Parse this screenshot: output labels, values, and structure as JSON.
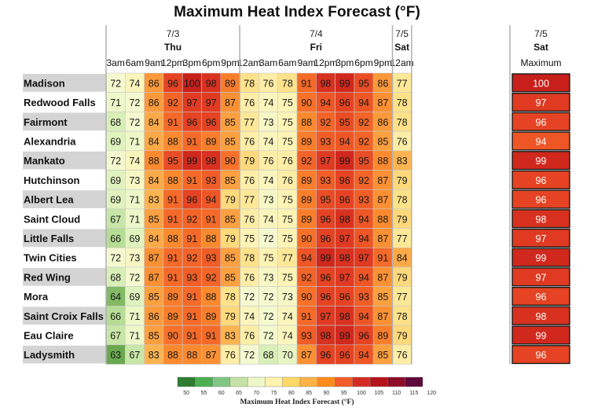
{
  "chart_data": {
    "type": "heatmap",
    "title": "Maximum Heat Index Forecast (°F)",
    "day_groups": [
      {
        "date": "7/3",
        "day": "Thu"
      },
      {
        "date": "7/4",
        "day": "Fri"
      },
      {
        "date": "7/5",
        "day": "Sat"
      }
    ],
    "columns": [
      "3am",
      "6am",
      "9am",
      "12pm",
      "3pm",
      "6pm",
      "9pm",
      "12am",
      "3am",
      "6am",
      "9am",
      "12pm",
      "3pm",
      "6pm",
      "9pm",
      "12am"
    ],
    "column_day_index": [
      0,
      0,
      0,
      0,
      0,
      0,
      0,
      1,
      1,
      1,
      1,
      1,
      1,
      1,
      1,
      2
    ],
    "maximum_label": "Maximum",
    "rows": [
      {
        "name": "Madison",
        "values": [
          72,
          74,
          86,
          96,
          100,
          98,
          89,
          78,
          76,
          78,
          91,
          98,
          99,
          95,
          86,
          77
        ],
        "max": 100
      },
      {
        "name": "Redwood Falls",
        "values": [
          71,
          72,
          86,
          92,
          97,
          97,
          87,
          76,
          74,
          75,
          90,
          94,
          96,
          94,
          87,
          78
        ],
        "max": 97
      },
      {
        "name": "Fairmont",
        "values": [
          68,
          72,
          84,
          91,
          96,
          96,
          85,
          77,
          73,
          75,
          88,
          92,
          95,
          92,
          86,
          78
        ],
        "max": 96
      },
      {
        "name": "Alexandria",
        "values": [
          69,
          71,
          84,
          88,
          91,
          89,
          85,
          76,
          74,
          75,
          89,
          93,
          94,
          92,
          85,
          76
        ],
        "max": 94
      },
      {
        "name": "Mankato",
        "values": [
          72,
          74,
          88,
          95,
          99,
          98,
          90,
          79,
          76,
          76,
          92,
          97,
          99,
          95,
          88,
          83
        ],
        "max": 99
      },
      {
        "name": "Hutchinson",
        "values": [
          69,
          73,
          84,
          88,
          91,
          93,
          85,
          76,
          74,
          76,
          89,
          93,
          96,
          92,
          87,
          79
        ],
        "max": 96
      },
      {
        "name": "Albert Lea",
        "values": [
          69,
          71,
          83,
          91,
          96,
          94,
          79,
          77,
          73,
          75,
          89,
          95,
          96,
          93,
          87,
          78
        ],
        "max": 96
      },
      {
        "name": "Saint Cloud",
        "values": [
          67,
          71,
          85,
          91,
          92,
          91,
          85,
          76,
          74,
          75,
          89,
          96,
          98,
          94,
          88,
          79
        ],
        "max": 98
      },
      {
        "name": "Little Falls",
        "values": [
          66,
          69,
          84,
          88,
          91,
          88,
          79,
          75,
          72,
          75,
          90,
          96,
          97,
          94,
          87,
          77
        ],
        "max": 97
      },
      {
        "name": "Twin Cities",
        "values": [
          72,
          73,
          87,
          91,
          92,
          93,
          85,
          78,
          75,
          77,
          94,
          99,
          98,
          97,
          91,
          84
        ],
        "max": 99
      },
      {
        "name": "Red Wing",
        "values": [
          68,
          72,
          87,
          91,
          93,
          92,
          85,
          76,
          73,
          75,
          92,
          96,
          97,
          94,
          87,
          79
        ],
        "max": 97
      },
      {
        "name": "Mora",
        "values": [
          64,
          69,
          85,
          89,
          91,
          88,
          78,
          72,
          72,
          73,
          90,
          96,
          96,
          93,
          85,
          77
        ],
        "max": 96
      },
      {
        "name": "Saint Croix Falls",
        "values": [
          66,
          71,
          86,
          89,
          91,
          89,
          79,
          74,
          72,
          74,
          91,
          97,
          98,
          94,
          87,
          78
        ],
        "max": 98
      },
      {
        "name": "Eau Claire",
        "values": [
          67,
          71,
          85,
          90,
          91,
          91,
          83,
          76,
          72,
          74,
          93,
          98,
          99,
          96,
          89,
          79
        ],
        "max": 99
      },
      {
        "name": "Ladysmith",
        "values": [
          63,
          67,
          83,
          88,
          88,
          87,
          76,
          72,
          68,
          70,
          87,
          96,
          96,
          94,
          85,
          76
        ],
        "max": 96
      }
    ],
    "colorbar": {
      "ticks": [
        50,
        55,
        60,
        65,
        70,
        75,
        80,
        85,
        90,
        95,
        100,
        105,
        110,
        115,
        120
      ],
      "colors": [
        "#2e7d32",
        "#4caf50",
        "#81c784",
        "#c5e1a5",
        "#eef7c8",
        "#fff3b0",
        "#ffd966",
        "#ffb347",
        "#ff8c1a",
        "#f25c2a",
        "#d42e24",
        "#b5121b",
        "#8e0c2a",
        "#5e0a3a"
      ],
      "label": "Maximum Heat Index Forecast (°F)"
    }
  }
}
